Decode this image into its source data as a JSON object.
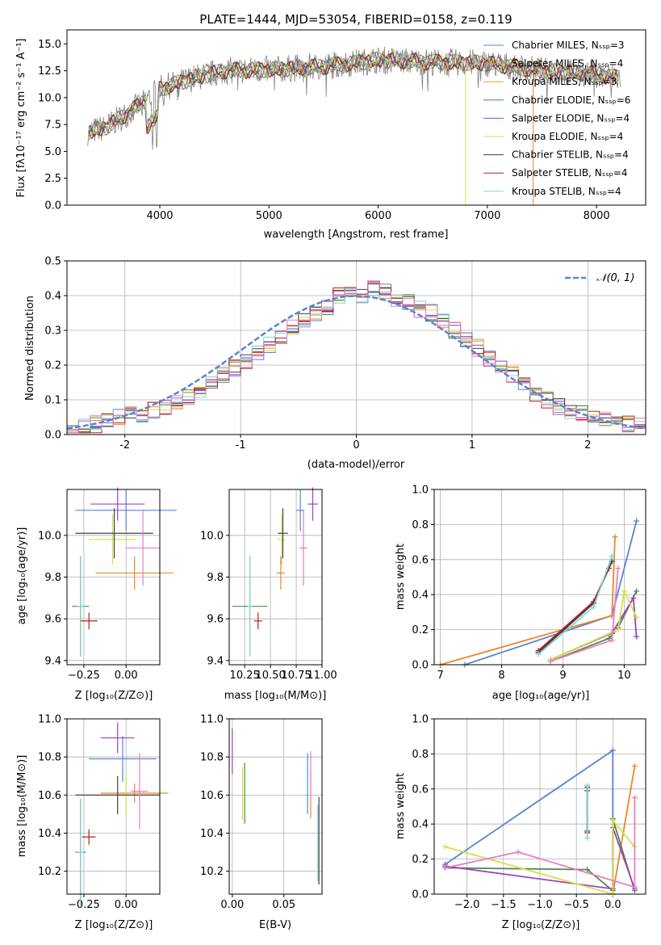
{
  "chart_data": [
    {
      "id": "spectrum",
      "type": "line",
      "title": "PLATE=1444, MJD=53054, FIBERID=0158, z=0.119",
      "xlabel": "wavelength [Angstrom, rest frame]",
      "ylabel": "Flux [fλ10⁻¹⁷ erg cm⁻² s⁻¹ A⁻¹]",
      "xlim": [
        3150,
        8450
      ],
      "ylim": [
        0,
        16.3
      ],
      "xticks": [
        4000,
        5000,
        6000,
        7000,
        8000
      ],
      "yticks": [
        0.0,
        2.5,
        5.0,
        7.5,
        10.0,
        12.5,
        15.0
      ],
      "grid": false,
      "legend_position": "right",
      "series": [
        {
          "name": "Chabrier MILES, N_SSP=3",
          "color": "#5a84d6"
        },
        {
          "name": "Salpeter MILES, N_SSP=4",
          "color": "#e8872e"
        },
        {
          "name": "Kroupa MILES, N_SSP=3",
          "color": "#f0a030"
        },
        {
          "name": "Chabrier ELODIE, N_SSP=6",
          "color": "#4c8a4c"
        },
        {
          "name": "Salpeter ELODIE, N_SSP=4",
          "color": "#a040c0"
        },
        {
          "name": "Kroupa ELODIE, N_SSP=4",
          "color": "#d6e04a"
        },
        {
          "name": "Chabrier STELIB, N_SSP=4",
          "color": "#404040"
        },
        {
          "name": "Salpeter STELIB, N_SSP=4",
          "color": "#b02020"
        },
        {
          "name": "Kroupa STELIB, N_SSP=4",
          "color": "#7fd6d6"
        }
      ],
      "data_points": [
        [
          3350,
          6.8
        ],
        [
          3500,
          7.2
        ],
        [
          3700,
          8.5
        ],
        [
          3900,
          10.0
        ],
        [
          4000,
          10.8
        ],
        [
          4300,
          11.8
        ],
        [
          4600,
          12.5
        ],
        [
          5000,
          12.6
        ],
        [
          5500,
          12.9
        ],
        [
          6000,
          13.5
        ],
        [
          6500,
          13.3
        ],
        [
          7000,
          13.2
        ],
        [
          7500,
          12.5
        ],
        [
          8000,
          12.2
        ],
        [
          8200,
          11.8
        ]
      ]
    },
    {
      "id": "residual-histogram",
      "type": "bar",
      "xlabel": "(data-model)/error",
      "ylabel": "Normed distribution",
      "xlim": [
        -2.5,
        2.5
      ],
      "ylim": [
        0,
        0.5
      ],
      "xticks": [
        -2,
        -1,
        0,
        1,
        2
      ],
      "yticks": [
        0.0,
        0.1,
        0.2,
        0.3,
        0.4,
        0.5
      ],
      "grid": true,
      "legend_position": "top-right",
      "legend_label": "𝒩(0, 1)",
      "gaussian": {
        "mean": 0,
        "sigma": 1
      },
      "bin_width": 0.1,
      "bin_start": -2.5,
      "approx_heights": [
        0.02,
        0.02,
        0.03,
        0.04,
        0.05,
        0.06,
        0.06,
        0.07,
        0.08,
        0.09,
        0.11,
        0.13,
        0.15,
        0.17,
        0.19,
        0.21,
        0.24,
        0.26,
        0.28,
        0.31,
        0.33,
        0.35,
        0.37,
        0.4,
        0.42,
        0.4,
        0.42,
        0.41,
        0.39,
        0.38,
        0.36,
        0.35,
        0.33,
        0.3,
        0.27,
        0.25,
        0.22,
        0.2,
        0.17,
        0.15,
        0.12,
        0.1,
        0.08,
        0.07,
        0.06,
        0.05,
        0.04,
        0.03,
        0.03,
        0.03
      ]
    },
    {
      "id": "age-vs-Z",
      "type": "scatter",
      "xlabel": "Z [log₁₀(Z/Z⊙)]",
      "ylabel": "age  [log₁₀(age/yr)]",
      "xlim": [
        -0.35,
        0.2
      ],
      "ylim": [
        9.38,
        10.22
      ],
      "xticks": [
        -0.25,
        0.0
      ],
      "xtick_labels": [
        "−0.25",
        "0.00"
      ],
      "yticks": [
        9.4,
        9.6,
        9.8,
        10.0
      ],
      "grid": true,
      "points": [
        {
          "x": 0.0,
          "y": 10.12,
          "xerr": 0.3,
          "yerr": 0.1,
          "color": "#5a84d6"
        },
        {
          "x": 0.05,
          "y": 9.82,
          "xerr": 0.23,
          "yerr": 0.08,
          "color": "#e8872e"
        },
        {
          "x": -0.27,
          "y": 9.66,
          "xerr": 0.05,
          "yerr": 0.24,
          "color": "#4c8a4c"
        },
        {
          "x": -0.05,
          "y": 10.15,
          "xerr": 0.16,
          "yerr": 0.08,
          "color": "#a040c0"
        },
        {
          "x": -0.08,
          "y": 9.98,
          "xerr": 0.14,
          "yerr": 0.12,
          "color": "#d6e04a"
        },
        {
          "x": -0.07,
          "y": 10.01,
          "xerr": 0.23,
          "yerr": 0.12,
          "color": "#404040"
        },
        {
          "x": -0.22,
          "y": 9.59,
          "xerr": 0.05,
          "yerr": 0.04,
          "color": "#b02020"
        },
        {
          "x": -0.27,
          "y": 9.66,
          "xerr": 0.02,
          "yerr": 0.24,
          "color": "#7fd6d6"
        },
        {
          "x": 0.1,
          "y": 9.94,
          "xerr": 0.1,
          "yerr": 0.18,
          "color": "#e77fbf"
        }
      ]
    },
    {
      "id": "age-vs-mass",
      "type": "scatter",
      "xlabel": "mass [log₁₀(M/M⊙)]",
      "xlim": [
        10.1,
        11.0
      ],
      "ylim": [
        9.38,
        10.22
      ],
      "xticks": [
        10.25,
        10.5,
        10.75,
        11.0
      ],
      "xtick_labels": [
        "10.25",
        "10.50",
        "10.75",
        "11.00"
      ],
      "yticks": [
        9.4,
        9.6,
        9.8,
        10.0
      ],
      "grid": true,
      "points": [
        {
          "x": 10.79,
          "y": 10.12,
          "xerr": 0.04,
          "yerr": 0.1,
          "color": "#5a84d6"
        },
        {
          "x": 10.6,
          "y": 9.82,
          "xerr": 0.04,
          "yerr": 0.08,
          "color": "#e8872e"
        },
        {
          "x": 10.3,
          "y": 9.66,
          "xerr": 0.17,
          "yerr": 0.24,
          "color": "#4c8a4c"
        },
        {
          "x": 10.91,
          "y": 10.15,
          "xerr": 0.05,
          "yerr": 0.08,
          "color": "#a040c0"
        },
        {
          "x": 10.61,
          "y": 9.98,
          "xerr": 0.04,
          "yerr": 0.12,
          "color": "#d6e04a"
        },
        {
          "x": 10.62,
          "y": 10.01,
          "xerr": 0.05,
          "yerr": 0.12,
          "color": "#404040"
        },
        {
          "x": 10.38,
          "y": 9.59,
          "xerr": 0.04,
          "yerr": 0.04,
          "color": "#b02020"
        },
        {
          "x": 10.3,
          "y": 9.66,
          "xerr": 0.02,
          "yerr": 0.24,
          "color": "#7fd6d6"
        },
        {
          "x": 10.82,
          "y": 9.94,
          "xerr": 0.04,
          "yerr": 0.18,
          "color": "#e77fbf"
        }
      ]
    },
    {
      "id": "massweight-vs-age",
      "type": "line",
      "xlabel": "age  [log₁₀(age/yr)]",
      "ylabel": "mass weight",
      "xlim": [
        6.9,
        10.35
      ],
      "ylim": [
        0,
        1.0
      ],
      "xticks": [
        7,
        8,
        9,
        10
      ],
      "yticks": [
        0.0,
        0.2,
        0.4,
        0.6,
        0.8,
        1.0
      ],
      "grid": true,
      "series": [
        {
          "color": "#5a84d6",
          "points": [
            [
              7.4,
              0.0
            ],
            [
              9.8,
              0.28
            ],
            [
              10.2,
              0.82
            ]
          ]
        },
        {
          "color": "#e8872e",
          "points": [
            [
              7.0,
              0.0
            ],
            [
              9.8,
              0.28
            ],
            [
              9.85,
              0.73
            ]
          ]
        },
        {
          "color": "#404040",
          "points": [
            [
              8.6,
              0.07
            ],
            [
              9.5,
              0.35
            ],
            [
              9.8,
              0.59
            ]
          ]
        },
        {
          "color": "#b02020",
          "points": [
            [
              8.6,
              0.08
            ],
            [
              9.5,
              0.36
            ],
            [
              9.75,
              0.55
            ]
          ]
        },
        {
          "color": "#7fd6d6",
          "points": [
            [
              8.6,
              0.06
            ],
            [
              9.5,
              0.33
            ],
            [
              9.8,
              0.62
            ]
          ]
        },
        {
          "color": "#4c8a4c",
          "points": [
            [
              8.8,
              0.02
            ],
            [
              9.75,
              0.15
            ],
            [
              9.9,
              0.21
            ],
            [
              10.2,
              0.42
            ]
          ]
        },
        {
          "color": "#a040c0",
          "points": [
            [
              8.8,
              0.03
            ],
            [
              9.8,
              0.18
            ],
            [
              10.15,
              0.38
            ],
            [
              10.2,
              0.16
            ]
          ]
        },
        {
          "color": "#d6e04a",
          "points": [
            [
              8.8,
              0.03
            ],
            [
              9.9,
              0.2
            ],
            [
              10.0,
              0.42
            ],
            [
              10.2,
              0.27
            ]
          ]
        },
        {
          "color": "#e77fbf",
          "points": [
            [
              8.8,
              0.02
            ],
            [
              9.8,
              0.14
            ],
            [
              9.9,
              0.55
            ]
          ]
        }
      ]
    },
    {
      "id": "mass-vs-Z",
      "type": "scatter",
      "xlabel": "Z [log₁₀(Z/Z⊙)]",
      "ylabel": "mass [log₁₀(M/M⊙)]",
      "xlim": [
        -0.35,
        0.2
      ],
      "ylim": [
        10.08,
        11.0
      ],
      "xticks": [
        -0.25,
        0.0
      ],
      "xtick_labels": [
        "−0.25",
        "0.00"
      ],
      "yticks": [
        10.2,
        10.4,
        10.6,
        10.8,
        11.0
      ],
      "grid": true,
      "points": [
        {
          "x": -0.02,
          "y": 10.79,
          "xerr": 0.2,
          "yerr": 0.12,
          "color": "#5a84d6"
        },
        {
          "x": 0.05,
          "y": 10.61,
          "xerr": 0.2,
          "yerr": 0.05,
          "color": "#e8872e"
        },
        {
          "x": -0.27,
          "y": 10.3,
          "xerr": 0.03,
          "yerr": 0.28,
          "color": "#4c8a4c"
        },
        {
          "x": -0.05,
          "y": 10.9,
          "xerr": 0.1,
          "yerr": 0.08,
          "color": "#a040c0"
        },
        {
          "x": 0.0,
          "y": 10.6,
          "xerr": 0.2,
          "yerr": 0.12,
          "color": "#d6e04a"
        },
        {
          "x": -0.05,
          "y": 10.6,
          "xerr": 0.25,
          "yerr": 0.1,
          "color": "#404040"
        },
        {
          "x": -0.22,
          "y": 10.38,
          "xerr": 0.04,
          "yerr": 0.04,
          "color": "#b02020"
        },
        {
          "x": -0.27,
          "y": 10.3,
          "xerr": 0.02,
          "yerr": 0.28,
          "color": "#7fd6d6"
        },
        {
          "x": 0.08,
          "y": 10.62,
          "xerr": 0.05,
          "yerr": 0.2,
          "color": "#e77fbf"
        }
      ]
    },
    {
      "id": "mass-vs-ebv",
      "type": "scatter",
      "xlabel": "E(B-V)",
      "xlim": [
        -0.003,
        0.087
      ],
      "ylim": [
        10.08,
        11.0
      ],
      "xticks": [
        0.0,
        0.05
      ],
      "xtick_labels": [
        "0.00",
        "0.05"
      ],
      "yticks": [
        10.2,
        10.4,
        10.6,
        10.8,
        11.0
      ],
      "grid": true,
      "points": [
        {
          "x": 0.073,
          "y": 10.66,
          "yerr": 0.16,
          "color": "#5a84d6"
        },
        {
          "x": 0.076,
          "y": 10.6,
          "yerr": 0.12,
          "color": "#e8872e"
        },
        {
          "x": 0.012,
          "y": 10.61,
          "yerr": 0.16,
          "color": "#4c8a4c"
        },
        {
          "x": 0.0,
          "y": 10.83,
          "yerr": 0.12,
          "color": "#a040c0"
        },
        {
          "x": 0.01,
          "y": 10.61,
          "yerr": 0.14,
          "color": "#d6e04a"
        },
        {
          "x": 0.084,
          "y": 10.36,
          "yerr": 0.23,
          "color": "#404040"
        },
        {
          "x": 0.083,
          "y": 10.35,
          "yerr": 0.2,
          "color": "#7fd6d6"
        },
        {
          "x": 0.076,
          "y": 10.71,
          "yerr": 0.12,
          "color": "#e77fbf"
        }
      ]
    },
    {
      "id": "massweight-vs-Z",
      "type": "line",
      "xlabel": "Z [log₁₀(Z/Z⊙)]",
      "ylabel": "mass weight",
      "xlim": [
        -2.45,
        0.45
      ],
      "ylim": [
        0,
        1.0
      ],
      "xticks": [
        -2.0,
        -1.5,
        -1.0,
        -0.5,
        0.0
      ],
      "xtick_labels": [
        "−2.0",
        "−1.5",
        "−1.0",
        "−0.5",
        "0.0"
      ],
      "yticks": [
        0.0,
        0.2,
        0.4,
        0.6,
        0.8,
        1.0
      ],
      "grid": true,
      "series": [
        {
          "color": "#5a84d6",
          "points": [
            [
              -2.3,
              0.17
            ],
            [
              0.0,
              0.82
            ],
            [
              0.0,
              0.0
            ]
          ]
        },
        {
          "color": "#e8872e",
          "points": [
            [
              0.0,
              0.0
            ],
            [
              0.3,
              0.73
            ]
          ]
        },
        {
          "color": "#404040",
          "points": [
            [
              -0.35,
              0.36
            ],
            [
              -0.35,
              0.61
            ]
          ]
        },
        {
          "color": "#b02020",
          "points": [
            [
              -0.35,
              0.35
            ],
            [
              -0.35,
              0.59
            ]
          ]
        },
        {
          "color": "#7fd6d6",
          "points": [
            [
              -0.35,
              0.32
            ],
            [
              -0.35,
              0.62
            ]
          ]
        },
        {
          "color": "#4c8a4c",
          "points": [
            [
              -2.3,
              0.15
            ],
            [
              -0.35,
              0.14
            ],
            [
              0.0,
              0.02
            ],
            [
              0.0,
              0.43
            ],
            [
              0.3,
              0.02
            ]
          ]
        },
        {
          "color": "#a040c0",
          "points": [
            [
              -2.3,
              0.16
            ],
            [
              0.0,
              0.03
            ],
            [
              0.0,
              0.38
            ],
            [
              0.3,
              0.03
            ]
          ]
        },
        {
          "color": "#d6e04a",
          "points": [
            [
              -2.3,
              0.27
            ],
            [
              0.0,
              0.0
            ],
            [
              0.0,
              0.42
            ],
            [
              0.3,
              0.27
            ]
          ]
        },
        {
          "color": "#e77fbf",
          "points": [
            [
              -2.3,
              0.15
            ],
            [
              -1.3,
              0.24
            ],
            [
              0.3,
              0.04
            ],
            [
              0.3,
              0.55
            ]
          ]
        }
      ]
    }
  ]
}
